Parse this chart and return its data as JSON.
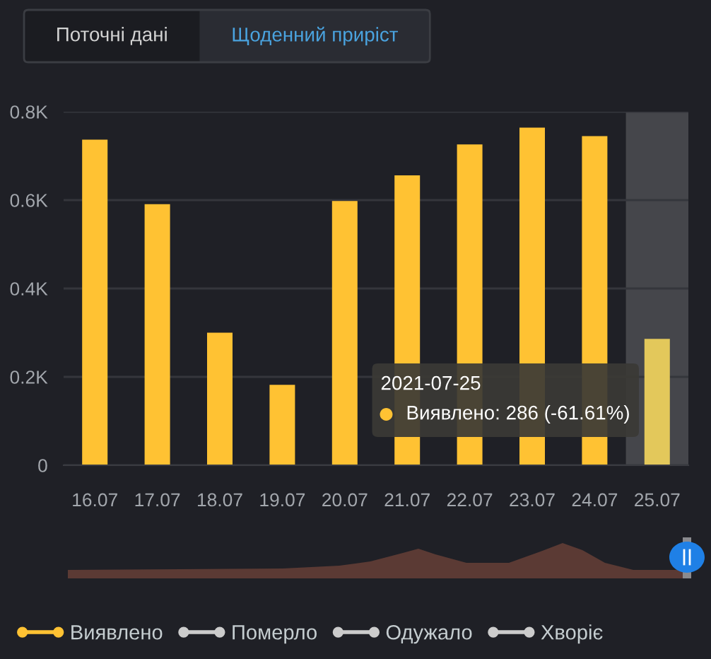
{
  "chart_data": {
    "type": "bar",
    "categories": [
      "16.07",
      "17.07",
      "18.07",
      "19.07",
      "20.07",
      "21.07",
      "22.07",
      "23.07",
      "24.07",
      "25.07"
    ],
    "series": [
      {
        "name": "Виявлено",
        "color": "#ffc233",
        "colors": [
          "#ffc233",
          "#ffc233",
          "#ffc233",
          "#ffc233",
          "#ffc233",
          "#ffc233",
          "#ffc233",
          "#ffc233",
          "#ffc233",
          "#e3c85b"
        ],
        "values": [
          737,
          591,
          300,
          182,
          598,
          656,
          726,
          764,
          745,
          286
        ]
      },
      {
        "name": "Померло",
        "color": "#cccccc",
        "values": [
          null,
          null,
          null,
          null,
          null,
          null,
          null,
          null,
          null,
          null
        ]
      },
      {
        "name": "Одужало",
        "color": "#cccccc",
        "values": [
          null,
          null,
          null,
          null,
          null,
          null,
          null,
          null,
          null,
          null
        ]
      },
      {
        "name": "Хворіє",
        "color": "#cccccc",
        "values": [
          null,
          null,
          null,
          null,
          null,
          null,
          null,
          null,
          null,
          null
        ]
      }
    ],
    "ylim": [
      0,
      800
    ],
    "yticks": [
      0,
      {
        "value": 200,
        "label": "0.2K"
      },
      {
        "value": 400,
        "label": "0.4K"
      },
      {
        "value": 600,
        "label": "0.6K"
      },
      {
        "value": 800,
        "label": "0.8K"
      }
    ],
    "grid": "y",
    "legend": "bottom",
    "bands": [
      {
        "axis": "x",
        "from": "25.07",
        "to": "25.07",
        "color": "#45464b"
      }
    ],
    "annotations": [
      "Поточні дані",
      "Щоденний приріст",
      "2021-07-25",
      "Виявлено: 286 (-61.61%)"
    ]
  }
}
